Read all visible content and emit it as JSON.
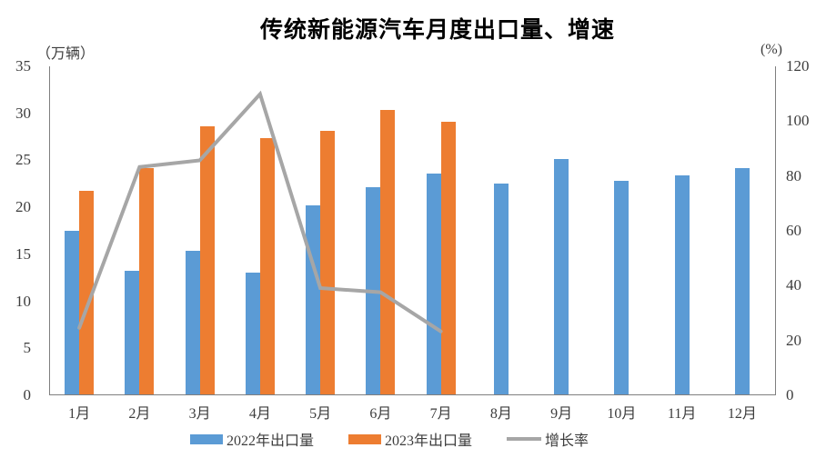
{
  "chart_data": {
    "type": "bar+line",
    "title": "传统新能源汽车月度出口量、增速",
    "categories": [
      "1月",
      "2月",
      "3月",
      "4月",
      "5月",
      "6月",
      "7月",
      "8月",
      "9月",
      "10月",
      "11月",
      "12月"
    ],
    "series": [
      {
        "name": "2022年出口量",
        "chart": "bar",
        "axis": "left",
        "color": "#5B9BD5",
        "values": [
          17.5,
          13.2,
          15.4,
          13.1,
          20.2,
          22.1,
          23.6,
          22.5,
          25.1,
          22.8,
          23.4,
          24.2
        ]
      },
      {
        "name": "2023年出口量",
        "chart": "bar",
        "axis": "left",
        "color": "#ED7D31",
        "values": [
          21.8,
          24.2,
          28.6,
          27.4,
          28.1,
          30.4,
          29.1,
          null,
          null,
          null,
          null,
          null
        ]
      },
      {
        "name": "增长率",
        "chart": "line",
        "axis": "right",
        "color": "#A6A6A6",
        "values": [
          24.6,
          83.3,
          85.7,
          109.9,
          39.1,
          37.6,
          23.3,
          null,
          null,
          null,
          null,
          null
        ]
      }
    ],
    "left_axis": {
      "unit": "（万辆）",
      "min": 0,
      "max": 35,
      "ticks": [
        35,
        30,
        25,
        20,
        15,
        10,
        5,
        0
      ]
    },
    "right_axis": {
      "unit": "(%)",
      "min": 0,
      "max": 120,
      "ticks": [
        120,
        100,
        80,
        60,
        40,
        20,
        0
      ]
    },
    "legend_position": "bottom",
    "grid": false
  },
  "colors": {
    "bar_2022": "#5B9BD5",
    "bar_2023": "#ED7D31",
    "growth_line": "#A6A6A6",
    "axis_line": "#7F7F7F",
    "tick_text": "#3D3D3D",
    "title_text": "#000000",
    "background": "#FFFFFF"
  }
}
